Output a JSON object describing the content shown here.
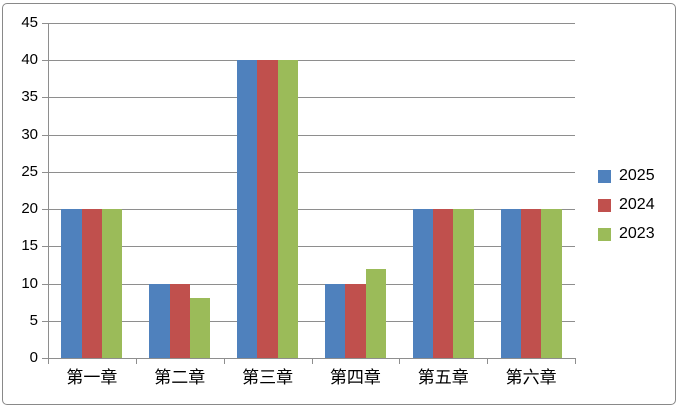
{
  "chart_data": {
    "type": "bar",
    "title": "",
    "xlabel": "",
    "ylabel": "",
    "categories": [
      "第一章",
      "第二章",
      "第三章",
      "第四章",
      "第五章",
      "第六章"
    ],
    "series": [
      {
        "name": "2025",
        "color": "#4F81BD",
        "values": [
          20,
          10,
          40,
          10,
          20,
          20
        ]
      },
      {
        "name": "2024",
        "color": "#C0504D",
        "values": [
          20,
          10,
          40,
          10,
          20,
          20
        ]
      },
      {
        "name": "2023",
        "color": "#9BBB59",
        "values": [
          20,
          8,
          40,
          12,
          20,
          20
        ]
      }
    ],
    "ylim": [
      0,
      45
    ],
    "ytick_step": 5,
    "ytick_labels": [
      "0",
      "5",
      "10",
      "15",
      "20",
      "25",
      "30",
      "35",
      "40",
      "45"
    ],
    "grid": "horizontal",
    "legend_position": "right",
    "legend_entries": [
      "2025",
      "2024",
      "2023"
    ]
  },
  "colors": {
    "background": "#ffffff",
    "border": "#898989",
    "gridline": "#8e8e8e",
    "axis": "#8e8e8e",
    "text": "#000000",
    "series_blue": "#4F81BD",
    "series_red": "#C0504D",
    "series_green": "#9BBB59"
  }
}
